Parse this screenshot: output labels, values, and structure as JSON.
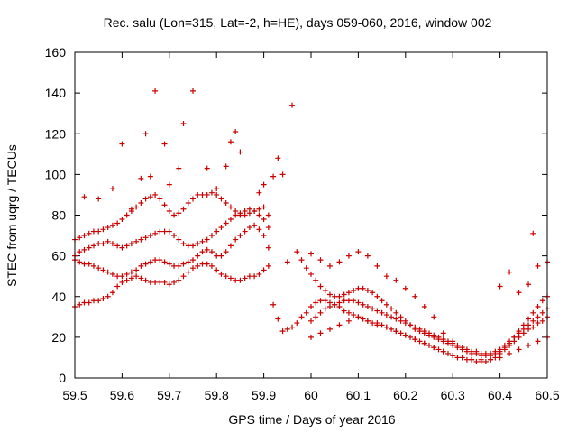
{
  "chart_data": {
    "type": "scatter",
    "title": "Rec. salu (Lon=315, Lat=-2, h=HE), days 059-060, 2016, window 002",
    "xlabel": "GPS time / Days of year 2016",
    "ylabel": "STEC from uqrg / TECUs",
    "xlim": [
      59.5,
      60.5
    ],
    "ylim": [
      0,
      160
    ],
    "xticks": [
      "59.5",
      "59.6",
      "59.7",
      "59.8",
      "59.9",
      "60",
      "60.1",
      "60.2",
      "60.3",
      "60.4",
      "60.5"
    ],
    "yticks": [
      "0",
      "20",
      "40",
      "60",
      "80",
      "100",
      "120",
      "140",
      "160"
    ],
    "grid": false,
    "legend": "none",
    "marker": "+",
    "color": "#cc0000",
    "series": [
      {
        "x": [
          59.5,
          59.51,
          59.52,
          59.53,
          59.54,
          59.55,
          59.56,
          59.57,
          59.58,
          59.59,
          59.6,
          59.61,
          59.62,
          59.63,
          59.64,
          59.65,
          59.66,
          59.67,
          59.68,
          59.69,
          59.7,
          59.71,
          59.72,
          59.73,
          59.74,
          59.75,
          59.76,
          59.77,
          59.78,
          59.79,
          59.8,
          59.81,
          59.82,
          59.83,
          59.84,
          59.85,
          59.86,
          59.87,
          59.88,
          59.89,
          59.9,
          59.91
        ],
        "y": [
          35,
          36,
          37,
          37,
          38,
          38,
          39,
          40,
          42,
          45,
          47,
          48,
          49,
          50,
          49,
          48,
          47,
          47,
          47,
          47,
          46,
          47,
          48,
          50,
          52,
          54,
          55,
          56,
          56,
          55,
          53,
          51,
          50,
          49,
          48,
          48,
          49,
          50,
          50,
          51,
          53,
          55
        ]
      },
      {
        "x": [
          59.5,
          59.51,
          59.52,
          59.53,
          59.54,
          59.55,
          59.56,
          59.57,
          59.58,
          59.59,
          59.6,
          59.61,
          59.62,
          59.63,
          59.64,
          59.65,
          59.66,
          59.67,
          59.68,
          59.69,
          59.7,
          59.71,
          59.72,
          59.73,
          59.74,
          59.75,
          59.76,
          59.77,
          59.78,
          59.79,
          59.8,
          59.81,
          59.82,
          59.83,
          59.84,
          59.85,
          59.86,
          59.87,
          59.88,
          59.89,
          59.9,
          59.91
        ],
        "y": [
          58,
          57,
          56,
          56,
          55,
          54,
          53,
          52,
          51,
          50,
          50,
          51,
          52,
          53,
          55,
          56,
          57,
          58,
          58,
          57,
          56,
          55,
          55,
          56,
          57,
          58,
          60,
          62,
          63,
          62,
          60,
          60,
          62,
          65,
          68,
          70,
          72,
          74,
          75,
          73,
          70,
          64
        ]
      },
      {
        "x": [
          59.5,
          59.51,
          59.52,
          59.53,
          59.54,
          59.55,
          59.56,
          59.57,
          59.58,
          59.59,
          59.6,
          59.61,
          59.62,
          59.63,
          59.64,
          59.65,
          59.66,
          59.67,
          59.68,
          59.69,
          59.7,
          59.71,
          59.72,
          59.73,
          59.74,
          59.75,
          59.76,
          59.77,
          59.78,
          59.79,
          59.8,
          59.81,
          59.82,
          59.83,
          59.84,
          59.85,
          59.86,
          59.87,
          59.88,
          59.89,
          59.9,
          59.91
        ],
        "y": [
          60,
          62,
          63,
          64,
          65,
          66,
          66,
          67,
          66,
          65,
          64,
          65,
          66,
          67,
          68,
          69,
          70,
          71,
          72,
          72,
          72,
          70,
          68,
          66,
          65,
          65,
          66,
          67,
          68,
          70,
          72,
          74,
          76,
          78,
          80,
          81,
          82,
          83,
          82,
          80,
          78,
          74
        ]
      },
      {
        "x": [
          59.5,
          59.51,
          59.52,
          59.53,
          59.54,
          59.55,
          59.56,
          59.57,
          59.58,
          59.59,
          59.6,
          59.61,
          59.62,
          59.63,
          59.64,
          59.65,
          59.66,
          59.67,
          59.68,
          59.69,
          59.7,
          59.71,
          59.72,
          59.73,
          59.74,
          59.75,
          59.76,
          59.77,
          59.78,
          59.79,
          59.8,
          59.81,
          59.82,
          59.83,
          59.84,
          59.85,
          59.86,
          59.87,
          59.88,
          59.89,
          59.9,
          59.91
        ],
        "y": [
          68,
          69,
          70,
          71,
          72,
          72,
          73,
          74,
          75,
          76,
          78,
          80,
          82,
          84,
          86,
          88,
          89,
          90,
          88,
          85,
          82,
          80,
          81,
          83,
          86,
          88,
          90,
          90,
          90,
          91,
          90,
          88,
          86,
          84,
          82,
          80,
          80,
          81,
          82,
          83,
          84,
          80
        ]
      },
      {
        "x": [
          59.52,
          59.55,
          59.58,
          59.6,
          59.62,
          59.64,
          59.65,
          59.66,
          59.67,
          59.69,
          59.7,
          59.72,
          59.73,
          59.75,
          59.78,
          59.8,
          59.82,
          59.83,
          59.84,
          59.85,
          59.89,
          59.9,
          59.92,
          59.93,
          59.94,
          59.95,
          59.96
        ],
        "y": [
          89,
          88,
          93,
          115,
          83,
          98,
          120,
          99,
          141,
          115,
          95,
          103,
          125,
          141,
          103,
          93,
          104,
          116,
          121,
          111,
          91,
          95,
          99,
          108,
          100,
          57,
          134
        ]
      },
      {
        "x": [
          59.92,
          59.93,
          59.94,
          59.95,
          59.96,
          59.97,
          59.98,
          59.99,
          60.0,
          60.01,
          60.02,
          60.03,
          60.04,
          60.05,
          60.06,
          60.07,
          60.08,
          60.09,
          60.1,
          60.11,
          60.12,
          60.13,
          60.14,
          60.15,
          60.16,
          60.17,
          60.18,
          60.19,
          60.2,
          60.21,
          60.22,
          60.23,
          60.24,
          60.25,
          60.26,
          60.27,
          60.28,
          60.29,
          60.3,
          60.31,
          60.32,
          60.33,
          60.34,
          60.35,
          60.36,
          60.37,
          60.38,
          60.39,
          60.4,
          60.41,
          60.42,
          60.43,
          60.44,
          60.45,
          60.46,
          60.47,
          60.48,
          60.49,
          60.5
        ],
        "y": [
          36,
          29,
          23,
          24,
          25,
          27,
          30,
          32,
          35,
          37,
          38,
          38,
          37,
          36,
          35,
          33,
          32,
          31,
          30,
          29,
          28,
          27,
          27,
          26,
          25,
          24,
          23,
          22,
          21,
          20,
          19,
          18,
          17,
          16,
          15,
          14,
          13,
          12,
          11,
          10,
          10,
          9,
          9,
          8,
          8,
          8,
          9,
          10,
          12,
          14,
          16,
          18,
          20,
          22,
          24,
          25,
          27,
          28,
          30
        ]
      },
      {
        "x": [
          59.97,
          59.98,
          59.99,
          60.0,
          60.01,
          60.02,
          60.03,
          60.04,
          60.05,
          60.06,
          60.07,
          60.08,
          60.09,
          60.1,
          60.11,
          60.12,
          60.13,
          60.14,
          60.15,
          60.16,
          60.17,
          60.18,
          60.19,
          60.2,
          60.21,
          60.22,
          60.23,
          60.24,
          60.25,
          60.26,
          60.27,
          60.28,
          60.29,
          60.3,
          60.31,
          60.32,
          60.33,
          60.34,
          60.35,
          60.36,
          60.37,
          60.38,
          60.39,
          60.4,
          60.41,
          60.42,
          60.43,
          60.44,
          60.45,
          60.46,
          60.47,
          60.48,
          60.49,
          60.5
        ],
        "y": [
          62,
          58,
          54,
          51,
          48,
          45,
          43,
          41,
          40,
          40,
          41,
          42,
          43,
          44,
          44,
          43,
          42,
          40,
          38,
          36,
          34,
          32,
          30,
          28,
          26,
          24,
          23,
          22,
          21,
          20,
          19,
          18,
          17,
          16,
          15,
          14,
          13,
          12,
          12,
          11,
          11,
          11,
          12,
          13,
          15,
          17,
          20,
          22,
          24,
          26,
          28,
          30,
          32,
          34
        ]
      },
      {
        "x": [
          60.0,
          60.01,
          60.02,
          60.03,
          60.04,
          60.05,
          60.06,
          60.07,
          60.08,
          60.09,
          60.1,
          60.11,
          60.12,
          60.13,
          60.14,
          60.15,
          60.16,
          60.17,
          60.18,
          60.19,
          60.2,
          60.21,
          60.22,
          60.23,
          60.24,
          60.25,
          60.26,
          60.27,
          60.28,
          60.29,
          60.3,
          60.31,
          60.32,
          60.33,
          60.34,
          60.35,
          60.36,
          60.37,
          60.38,
          60.39,
          60.4,
          60.41,
          60.42,
          60.43,
          60.44,
          60.45,
          60.46,
          60.47,
          60.48,
          60.49,
          60.5
        ],
        "y": [
          28,
          30,
          32,
          34,
          35,
          36,
          37,
          38,
          38,
          38,
          37,
          36,
          35,
          34,
          33,
          32,
          31,
          30,
          29,
          28,
          27,
          26,
          25,
          24,
          23,
          22,
          21,
          20,
          19,
          18,
          17,
          16,
          15,
          14,
          13,
          13,
          12,
          12,
          12,
          13,
          14,
          16,
          18,
          20,
          23,
          26,
          29,
          32,
          35,
          38,
          40
        ]
      },
      {
        "x": [
          60.0,
          60.02,
          60.04,
          60.06,
          60.08,
          60.1,
          60.12,
          60.14,
          60.16,
          60.18,
          60.2,
          60.22,
          60.24,
          60.26,
          60.28,
          60.3,
          60.32,
          60.34,
          60.36,
          60.38,
          60.4,
          60.42,
          60.44,
          60.46,
          60.48,
          60.5
        ],
        "y": [
          20,
          22,
          24,
          26,
          28,
          30,
          28,
          26,
          25,
          23,
          21,
          19,
          17,
          15,
          13,
          11,
          10,
          9,
          9,
          9,
          10,
          12,
          14,
          16,
          18,
          20
        ]
      },
      {
        "x": [
          60.0,
          60.02,
          60.04,
          60.06,
          60.08,
          60.1,
          60.12,
          60.14,
          60.16,
          60.18,
          60.2,
          60.22,
          60.24,
          60.26,
          60.28,
          60.3
        ],
        "y": [
          61,
          58,
          55,
          57,
          60,
          62,
          60,
          55,
          50,
          48,
          44,
          40,
          35,
          30,
          22,
          18
        ]
      },
      {
        "x": [
          60.4,
          60.42,
          60.44,
          60.46,
          60.47,
          60.48,
          60.5
        ],
        "y": [
          45,
          52,
          42,
          46,
          71,
          55,
          57
        ]
      }
    ]
  }
}
